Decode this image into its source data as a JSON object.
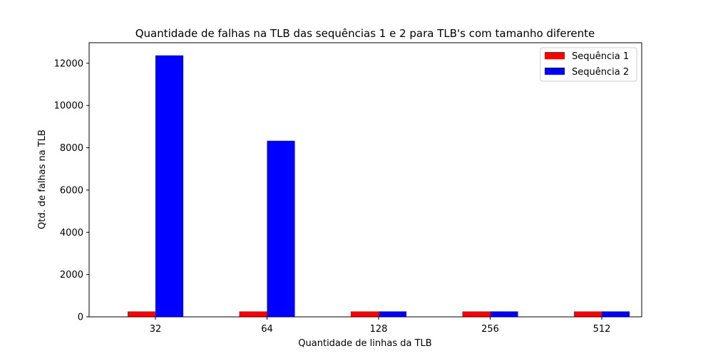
{
  "chart_data": {
    "type": "bar",
    "title": "Quantidade de falhas na TLB das sequências 1 e 2 para TLB's com tamanho diferente",
    "xlabel": "Quantidade de linhas da TLB",
    "ylabel": "Qtd. de falhas na TLB",
    "categories": [
      "32",
      "64",
      "128",
      "256",
      "512"
    ],
    "ylim": [
      0,
      12970
    ],
    "yticks": [
      0,
      2000,
      4000,
      6000,
      8000,
      10000,
      12000
    ],
    "grid": false,
    "legend_position": "top-right",
    "series": [
      {
        "name": "Sequência 1",
        "color": "#ff0000",
        "values": [
          256,
          256,
          256,
          256,
          256
        ]
      },
      {
        "name": "Sequência 2",
        "color": "#0000ff",
        "values": [
          12370,
          8330,
          256,
          256,
          256
        ]
      }
    ]
  }
}
